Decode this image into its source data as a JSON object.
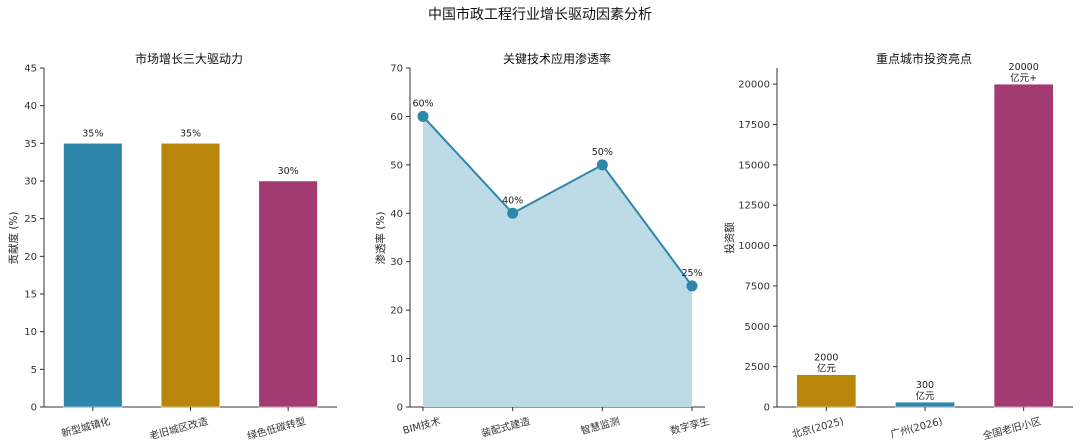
{
  "title": "中国市政工程行业增长驱动因素分析",
  "colors": {
    "blue": "#2e86ab",
    "gold": "#b8860b",
    "magenta": "#a23b72",
    "area": "#bcdbe6"
  },
  "chart_data": [
    {
      "type": "bar",
      "title": "市场增长三大驱动力",
      "ylabel": "贡献度 (%)",
      "xlabel": "",
      "categories": [
        "新型城镇化",
        "老旧城区改造",
        "绿色低碳转型"
      ],
      "values": [
        35,
        35,
        30
      ],
      "labels": [
        "35%",
        "35%",
        "30%"
      ],
      "colors": [
        "#2e86ab",
        "#b8860b",
        "#a23b72"
      ],
      "ylim": [
        0,
        45
      ],
      "yticks": [
        0,
        5,
        10,
        15,
        20,
        25,
        30,
        35,
        40,
        45
      ],
      "grid": false
    },
    {
      "type": "line",
      "title": "关键技术应用渗透率",
      "ylabel": "渗透率 (%)",
      "xlabel": "",
      "categories": [
        "BIM技术",
        "装配式建造",
        "智慧监测",
        "数字孪生"
      ],
      "values": [
        60,
        40,
        50,
        25
      ],
      "labels": [
        "60%",
        "40%",
        "50%",
        "25%"
      ],
      "filled": true,
      "color": "#2e86ab",
      "ylim": [
        0,
        70
      ],
      "yticks": [
        0,
        10,
        20,
        30,
        40,
        50,
        60,
        70
      ],
      "grid": false
    },
    {
      "type": "bar",
      "title": "重点城市投资亮点",
      "ylabel": "投资额",
      "xlabel": "",
      "categories": [
        "北京(2025)",
        "广州(2026)",
        "全国老旧小区"
      ],
      "values": [
        2000,
        300,
        20000
      ],
      "labels": [
        [
          "2000",
          "亿元"
        ],
        [
          "300",
          "亿元"
        ],
        [
          "20000",
          "亿元+"
        ]
      ],
      "colors": [
        "#b8860b",
        "#2e86ab",
        "#a23b72"
      ],
      "ylim": [
        0,
        21000
      ],
      "yticks": [
        0,
        2500,
        5000,
        7500,
        10000,
        12500,
        15000,
        17500,
        20000
      ],
      "grid": false
    }
  ]
}
